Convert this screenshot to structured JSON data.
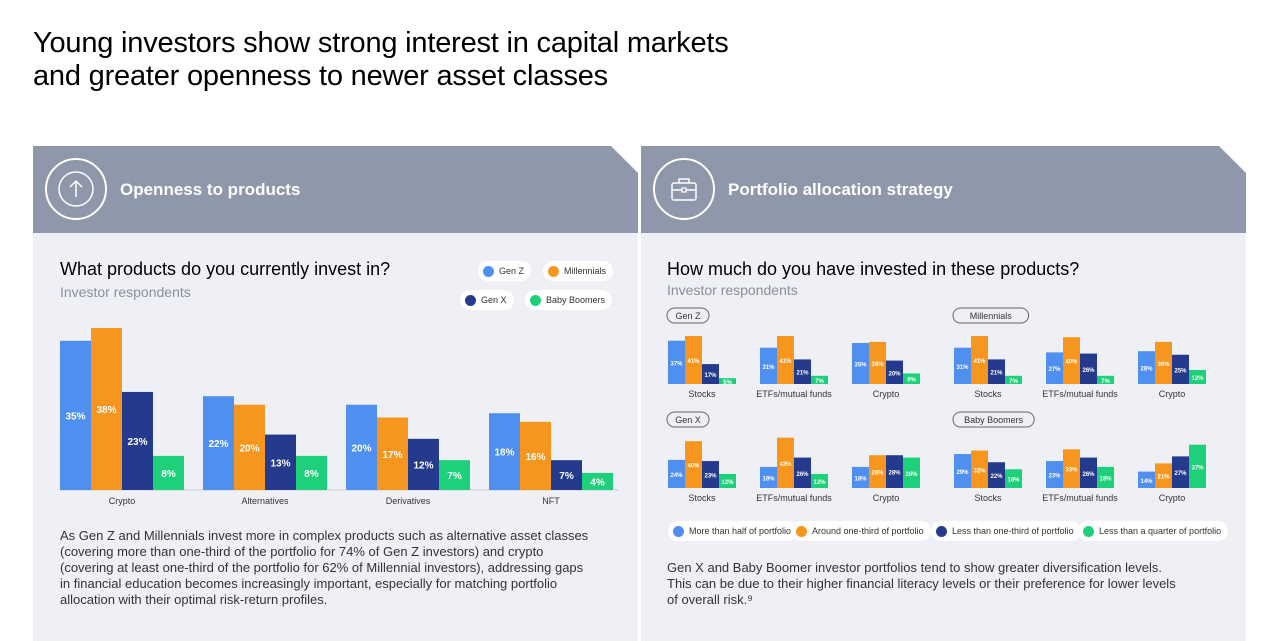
{
  "title_line1": "Young investors show strong interest in capital markets",
  "title_line2": "and greater openness to newer asset classes",
  "colors": {
    "gen_z": "#4f8ff0",
    "millennials": "#f7961e",
    "gen_x": "#243a8c",
    "baby_boomers": "#1fd07a",
    "header": "#8f97aa",
    "panel": "#eef0f5"
  },
  "left": {
    "header_title": "Openness to products",
    "header_icon": "arrow-up-circle-icon",
    "question": "What products do you currently invest in?",
    "subtitle": "Investor respondents",
    "legend": [
      "Gen Z",
      "Millennials",
      "Gen X",
      "Baby Boomers"
    ],
    "paragraph": [
      "As Gen Z and Millennials invest more in complex products such as alternative asset classes",
      "(covering more than one-third of the portfolio for 74% of Gen Z investors) and crypto",
      "(covering at least one-third of the portfolio for 62% of Millennial investors), addressing gaps",
      "in financial education becomes increasingly important, especially for matching portfolio",
      "allocation with their optimal risk-return profiles."
    ]
  },
  "right": {
    "header_title": "Portfolio allocation strategy",
    "header_icon": "briefcase-icon",
    "question": "How much do you have invested in these products?",
    "subtitle": "Investor respondents",
    "legend": [
      "More than half of portfolio",
      "Around one-third of portfolio",
      "Less than one-third of portfolio",
      "Less than a quarter of portfolio"
    ],
    "paragraph": [
      "Gen X and Baby Boomer investor portfolios tend to show greater diversification levels.",
      "This can be due to their higher financial literacy levels or their preference for lower levels",
      "of overall risk.⁹"
    ]
  },
  "chart_data": [
    {
      "type": "bar",
      "title": "What products do you currently invest in?",
      "subtitle": "Investor respondents",
      "categories": [
        "Crypto",
        "Alternatives",
        "Derivatives",
        "NFT"
      ],
      "series": [
        {
          "name": "Gen Z",
          "values": [
            35,
            22,
            20,
            18
          ]
        },
        {
          "name": "Millennials",
          "values": [
            38,
            20,
            17,
            16
          ]
        },
        {
          "name": "Gen X",
          "values": [
            23,
            13,
            12,
            7
          ]
        },
        {
          "name": "Baby Boomers",
          "values": [
            8,
            8,
            7,
            4
          ]
        }
      ],
      "unit": "%",
      "ylim": [
        0,
        38
      ]
    },
    {
      "type": "bar",
      "title": "How much do you have invested in these products?",
      "subtitle": "Investor respondents",
      "series_names": [
        "More than half of portfolio",
        "Around one-third of portfolio",
        "Less than one-third of portfolio",
        "Less than a quarter of portfolio"
      ],
      "unit": "%",
      "ylim": [
        0,
        41
      ],
      "groups": [
        {
          "name": "Gen Z",
          "categories": [
            "Stocks",
            "ETFs/mutual funds",
            "Crypto"
          ],
          "values": [
            [
              37,
              41,
              17,
              5
            ],
            [
              31,
              41,
              21,
              7
            ],
            [
              35,
              36,
              20,
              9
            ]
          ]
        },
        {
          "name": "Millennials",
          "categories": [
            "Stocks",
            "ETFs/mutual funds",
            "Crypto"
          ],
          "values": [
            [
              31,
              41,
              21,
              7
            ],
            [
              27,
              40,
              26,
              7
            ],
            [
              28,
              36,
              25,
              12
            ]
          ]
        },
        {
          "name": "Gen X",
          "categories": [
            "Stocks",
            "ETFs/mutual funds",
            "Crypto"
          ],
          "values": [
            [
              24,
              40,
              23,
              12
            ],
            [
              18,
              43,
              26,
              12
            ],
            [
              18,
              28,
              28,
              26
            ]
          ]
        },
        {
          "name": "Baby Boomers",
          "categories": [
            "Stocks",
            "ETFs/mutual funds",
            "Crypto"
          ],
          "values": [
            [
              29,
              32,
              22,
              16
            ],
            [
              23,
              33,
              26,
              18
            ],
            [
              14,
              21,
              27,
              37
            ]
          ]
        }
      ]
    }
  ]
}
